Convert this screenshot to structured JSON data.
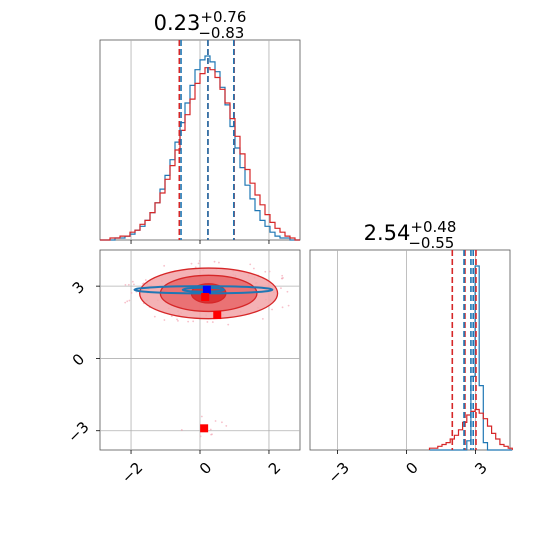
{
  "chart_data": {
    "type": "corner",
    "colors": {
      "series_a": "#d62728",
      "series_b": "#1f77b4",
      "scatter": "#f4a6b5",
      "square_red": "#ff0000",
      "square_blue": "#0000ff"
    },
    "series": [
      {
        "name": "",
        "color": "#d62728"
      },
      {
        "name": "",
        "color": "#1f77b4"
      }
    ],
    "panels": [
      {
        "id": "hist-param-1",
        "type": "histogram",
        "title": {
          "base": "0.23",
          "sup": "+0.76",
          "sub": "−0.83"
        },
        "x_range": [
          -2.9,
          2.9
        ],
        "x_ticks": [
          -2,
          0,
          2
        ],
        "grid": true,
        "bin_edges_start": -2.9,
        "bin_width": 0.145,
        "counts": {
          "series_a": [
            0,
            0,
            1,
            1,
            2,
            2,
            4,
            5,
            8,
            10,
            14,
            19,
            24,
            31,
            38,
            46,
            56,
            64,
            72,
            80,
            85,
            88,
            87,
            83,
            77,
            70,
            62,
            53,
            44,
            36,
            29,
            23,
            18,
            13,
            9,
            6,
            4,
            2,
            1,
            0
          ],
          "series_b": [
            0,
            0,
            0,
            1,
            1,
            2,
            3,
            5,
            7,
            10,
            14,
            19,
            26,
            33,
            41,
            50,
            60,
            70,
            79,
            87,
            92,
            94,
            91,
            86,
            78,
            69,
            58,
            47,
            37,
            28,
            21,
            15,
            10,
            7,
            4,
            2,
            1,
            1,
            0,
            0
          ]
        },
        "quantile_lines": {
          "series_a": [
            -0.6,
            0.23,
            0.99
          ],
          "series_b": [
            -0.55,
            0.23,
            0.98
          ]
        }
      },
      {
        "id": "contour-panel",
        "type": "2d-density",
        "x_range": [
          -2.9,
          2.9
        ],
        "y_range": [
          -3.8,
          4.5
        ],
        "x_ticks": [
          -2,
          0,
          2
        ],
        "x_tick_labels": [
          "−2",
          "0",
          "2"
        ],
        "y_ticks": [
          -3,
          0,
          3
        ],
        "y_tick_labels": [
          "−3",
          "0",
          "3"
        ],
        "grid": true,
        "series_a_center": [
          0.25,
          2.7
        ],
        "series_a_contour_radii": [
          [
            0.5,
            0.4
          ],
          [
            1.4,
            0.75
          ],
          [
            2.0,
            1.05
          ]
        ],
        "series_b_center": [
          0.1,
          2.85
        ],
        "series_b_contour_radii": [
          [
            0.6,
            0.05
          ],
          [
            2.0,
            0.15
          ]
        ],
        "markers": [
          {
            "x": 0.2,
            "y": 2.85,
            "color": "#0000ff"
          },
          {
            "x": 0.15,
            "y": 2.55,
            "color": "#ff0000"
          },
          {
            "x": 0.5,
            "y": 1.8,
            "color": "#ff0000"
          },
          {
            "x": 0.12,
            "y": -2.9,
            "color": "#ff0000"
          }
        ]
      },
      {
        "id": "hist-param-2",
        "type": "histogram",
        "title": {
          "base": "2.54",
          "sup": "+0.48",
          "sub": "−0.55"
        },
        "x_range": [
          -4.2,
          4.5
        ],
        "x_ticks": [
          -3,
          0,
          3
        ],
        "x_tick_labels": [
          "−3",
          "0",
          "3"
        ],
        "grid": true,
        "bin_edges_start": 1.0,
        "bin_width": 0.18,
        "counts": {
          "series_a": [
            1,
            1,
            2,
            3,
            4,
            6,
            8,
            11,
            15,
            19,
            21,
            22,
            20,
            17,
            13,
            9,
            6,
            3,
            2,
            1
          ],
          "series_b": [
            0,
            0,
            0,
            0,
            0,
            0,
            0,
            0,
            0,
            5,
            40,
            100,
            35,
            4,
            0,
            0,
            0,
            0,
            0,
            0
          ]
        },
        "quantile_lines": {
          "series_a": [
            1.99,
            2.54,
            3.02
          ],
          "series_b": [
            2.5,
            2.8,
            2.9
          ]
        }
      }
    ]
  }
}
